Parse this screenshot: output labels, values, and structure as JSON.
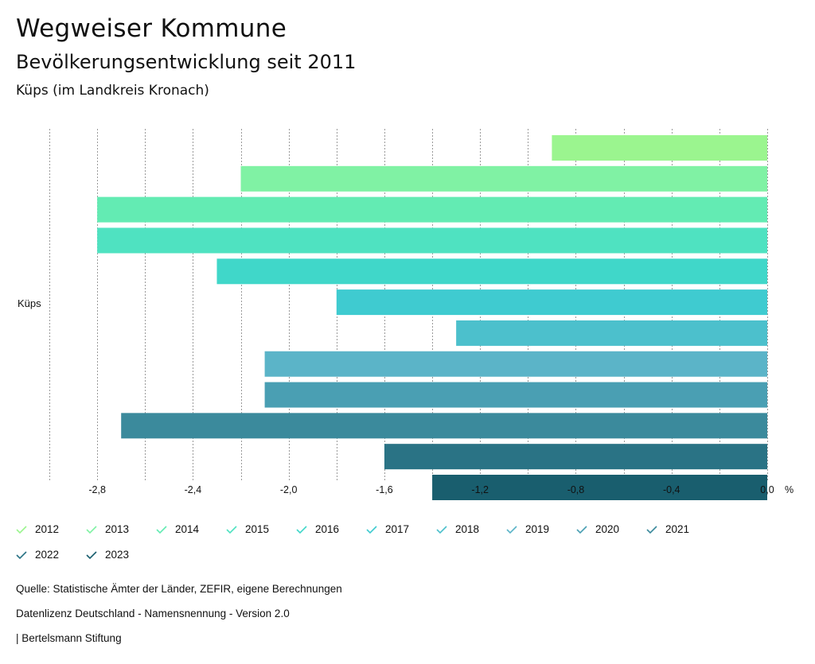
{
  "header": {
    "title": "Wegweiser Kommune",
    "subtitle": "Bevölkerungsentwicklung seit 2011",
    "region": "Küps (im Landkreis Kronach)"
  },
  "chart_data": {
    "type": "bar",
    "orientation": "horizontal",
    "category": "Küps",
    "xlim": [
      -3.0,
      0.0
    ],
    "xticks": [
      -2.8,
      -2.4,
      -2.0,
      -1.6,
      -1.2,
      -0.8,
      -0.4,
      0.0
    ],
    "xtick_labels": [
      "-2,8",
      "-2,4",
      "-2,0",
      "-1,6",
      "-1,2",
      "-0,8",
      "-0,4",
      "0,0"
    ],
    "unit": "%",
    "grid": true,
    "series": [
      {
        "name": "2012",
        "value": -0.9,
        "color": "#9bf58f"
      },
      {
        "name": "2013",
        "value": -2.2,
        "color": "#80f2a4"
      },
      {
        "name": "2014",
        "value": -2.8,
        "color": "#63ebb3"
      },
      {
        "name": "2015",
        "value": -2.8,
        "color": "#4fe2c1"
      },
      {
        "name": "2016",
        "value": -2.3,
        "color": "#40d7c9"
      },
      {
        "name": "2017",
        "value": -1.8,
        "color": "#3fcbd0"
      },
      {
        "name": "2018",
        "value": -1.3,
        "color": "#4cc0cc"
      },
      {
        "name": "2019",
        "value": -2.1,
        "color": "#5bb4c8"
      },
      {
        "name": "2020",
        "value": -2.1,
        "color": "#4a9fb3"
      },
      {
        "name": "2021",
        "value": -2.7,
        "color": "#3b8a9c"
      },
      {
        "name": "2022",
        "value": -1.6,
        "color": "#2a7385"
      },
      {
        "name": "2023",
        "value": -1.4,
        "color": "#195e6e"
      }
    ]
  },
  "footer": {
    "source": "Quelle: Statistische Ämter der Länder, ZEFIR, eigene Berechnungen",
    "license": "Datenlizenz Deutschland - Namensnennung - Version 2.0",
    "publisher": "| Bertelsmann Stiftung"
  }
}
